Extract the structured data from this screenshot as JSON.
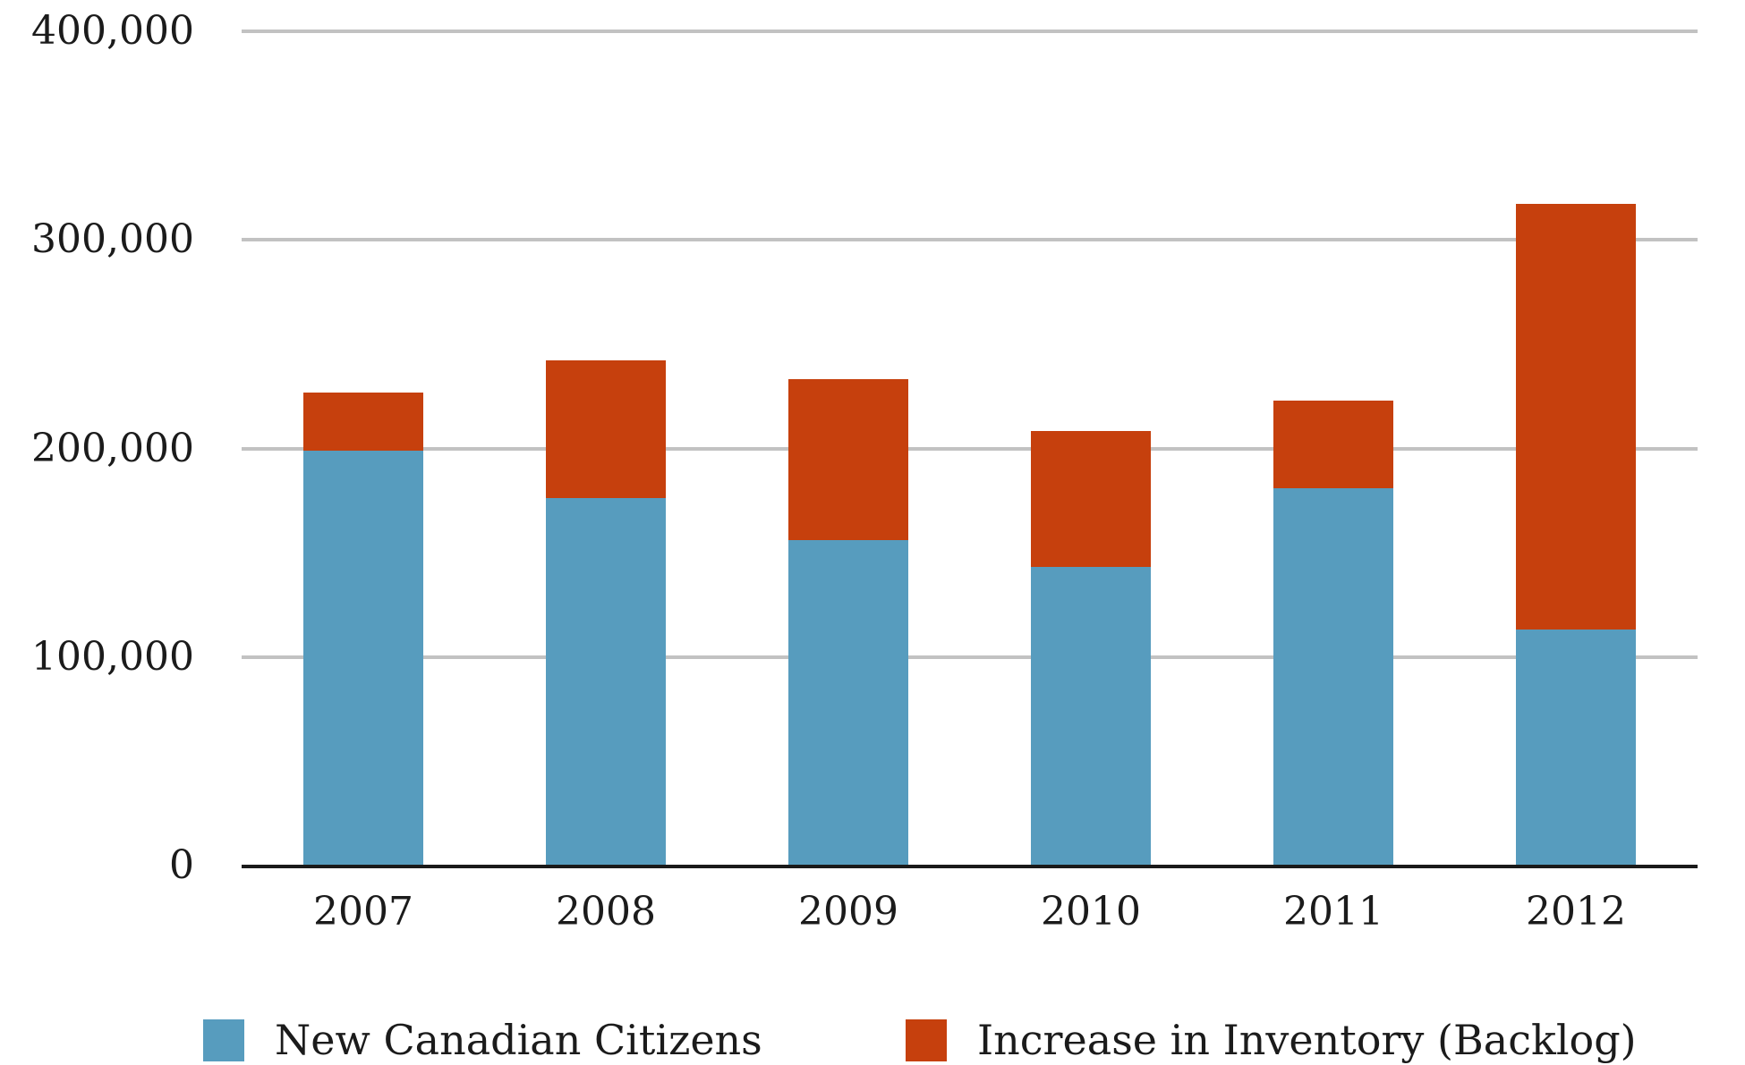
{
  "chart_data": {
    "type": "bar",
    "stacked": true,
    "title": "",
    "xlabel": "",
    "ylabel": "",
    "categories": [
      "2007",
      "2008",
      "2009",
      "2010",
      "2011",
      "2012"
    ],
    "series": [
      {
        "name": "New Canadian Citizens",
        "color": "#579cbe",
        "values": [
          199000,
          176000,
          156000,
          143000,
          181000,
          113000
        ]
      },
      {
        "name": "Increase in Inventory (Backlog)",
        "color": "#c6400d",
        "values": [
          28000,
          66000,
          77000,
          65000,
          42000,
          204000
        ]
      }
    ],
    "ylim": [
      0,
      400000
    ],
    "y_ticks": [
      {
        "value": 400000,
        "label": "400,000"
      },
      {
        "value": 300000,
        "label": "300,000"
      },
      {
        "value": 200000,
        "label": "200,000"
      },
      {
        "value": 100000,
        "label": "100,000"
      },
      {
        "value": 0,
        "label": "0"
      }
    ],
    "grid": true,
    "legend_position": "bottom"
  },
  "legend": {
    "items": [
      {
        "label": "New Canadian Citizens",
        "color": "#579cbe"
      },
      {
        "label": "Increase in Inventory (Backlog)",
        "color": "#c6400d"
      }
    ]
  },
  "colors": {
    "bar_blue": "#579cbe",
    "bar_red": "#c6400d",
    "gridline": "#c2c2c2",
    "axis": "#1a1a1a",
    "text": "#1b1b1b",
    "background": "#ffffff"
  }
}
